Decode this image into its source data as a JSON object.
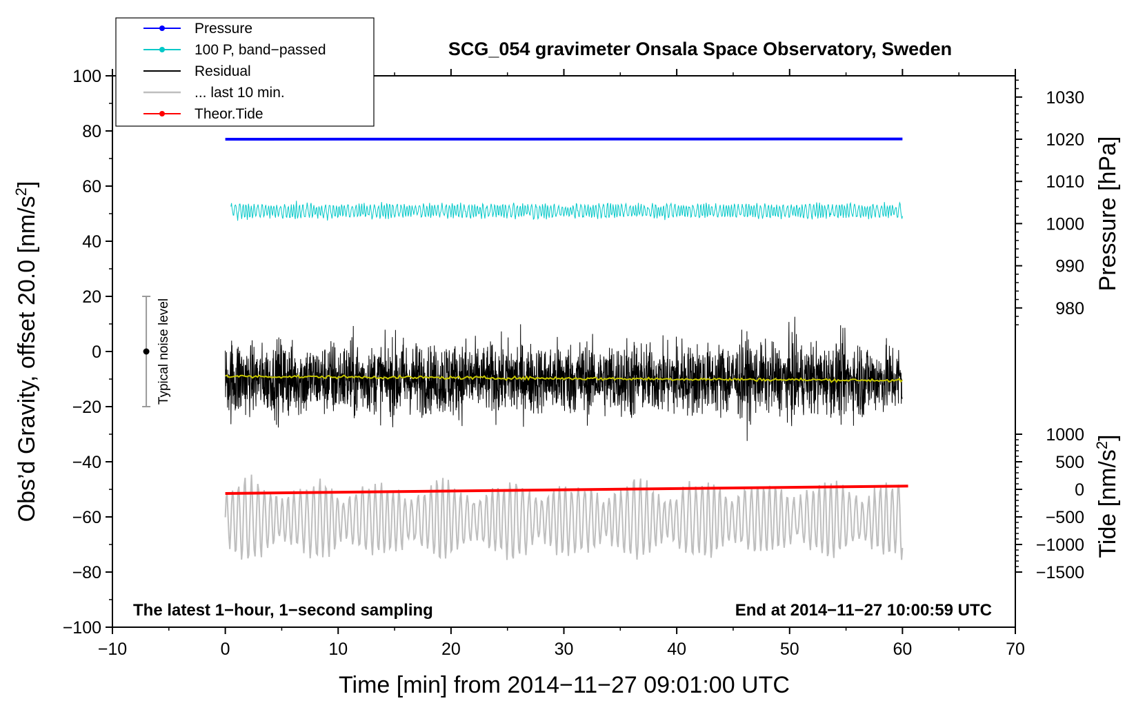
{
  "chart_data": {
    "type": "line",
    "title": "SCG_054 gravimeter Onsala Space Observatory, Sweden",
    "xlabel": "Time [min] from 2014−11−27 09:01:00 UTC",
    "ylabel_left_prefix": "Obs’d Gravity, offset 20.0 [nm/s",
    "ylabel_left_sup": "2",
    "ylabel_left_suffix": "]",
    "ylabel_right_pressure": "Pressure [hPa]",
    "ylabel_right_tide_prefix": "Tide [nm/s",
    "ylabel_right_tide_sup": "2",
    "ylabel_right_tide_suffix": "]",
    "annotation_left": "The latest 1−hour, 1−second sampling",
    "annotation_right": "End at 2014−11−27 10:00:59 UTC",
    "noise_label": "Typical noise level",
    "noise_bar": {
      "x": -7.0,
      "center": 0,
      "low": -20,
      "high": 20
    },
    "xlim": [
      -10,
      70
    ],
    "ylim": [
      -100,
      100
    ],
    "x_ticks": [
      "−10",
      "0",
      "10",
      "20",
      "30",
      "40",
      "50",
      "60",
      "70"
    ],
    "x_tick_values": [
      -10,
      0,
      10,
      20,
      30,
      40,
      50,
      60,
      70
    ],
    "y_ticks": [
      "−100",
      "−80",
      "−60",
      "−40",
      "−20",
      "0",
      "20",
      "40",
      "60",
      "80",
      "100"
    ],
    "y_tick_values": [
      -100,
      -80,
      -60,
      -40,
      -20,
      0,
      20,
      40,
      60,
      80,
      100
    ],
    "pressure_axis": {
      "ticks": [
        "980",
        "990",
        "1000",
        "1010",
        "1020",
        "1030"
      ],
      "tick_values": [
        980,
        990,
        1000,
        1010,
        1020,
        1030
      ],
      "gravity_at_1020": 77,
      "gravity_per_hpa": 1.53
    },
    "tide_axis": {
      "ticks": [
        "−1500",
        "−1000",
        "−500",
        "0",
        "500",
        "1000"
      ],
      "tick_values": [
        -1500,
        -1000,
        -500,
        0,
        500,
        1000
      ],
      "gravity_at_0": -50,
      "gravity_per_unit": 0.02
    },
    "legend": [
      {
        "label": "Pressure",
        "color": "#0000ff",
        "marker": true
      },
      {
        "label": "100 P, band−passed",
        "color": "#00c8c8",
        "marker": true
      },
      {
        "label": "Residual",
        "color": "#000000",
        "marker": false
      },
      {
        "label": "... last 10 min.",
        "color": "#bebebe",
        "marker": false
      },
      {
        "label": "Theor.Tide",
        "color": "#ff0000",
        "marker": true
      }
    ],
    "series": [
      {
        "name": "Pressure",
        "color": "#0000ff",
        "x": [
          0,
          60
        ],
        "y": [
          77,
          77.1
        ]
      },
      {
        "name": "100 P, band-passed",
        "color": "#00c8c8",
        "x_range": [
          0.5,
          60
        ],
        "center": 51,
        "amplitude": 2.2
      },
      {
        "name": "Residual",
        "color": "#000000",
        "x_range": [
          0,
          60
        ],
        "center": -10,
        "amplitude": 11
      },
      {
        "name": "Residual smoothed",
        "color": "#c8c800",
        "x_range": [
          0,
          60
        ],
        "y_start": -9,
        "y_end": -10.5
      },
      {
        "name": "... last 10 min.",
        "color": "#bebebe",
        "x_range": [
          0,
          60
        ],
        "center": -61,
        "amplitude": 12
      },
      {
        "name": "Theor.Tide",
        "color": "#ff0000",
        "x": [
          0,
          60.5
        ],
        "y": [
          -51.5,
          -48.8
        ]
      }
    ]
  }
}
